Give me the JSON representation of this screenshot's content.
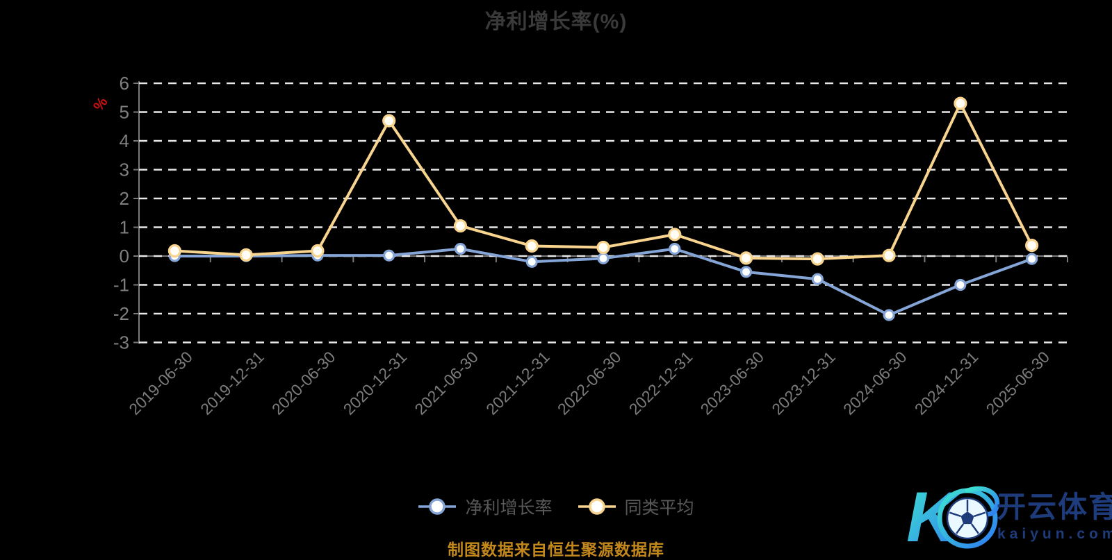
{
  "page": {
    "background": "#000000"
  },
  "title": {
    "text": "净利增长率(%)"
  },
  "chart_data": {
    "type": "line",
    "title": "净利增长率(%)",
    "categories": [
      "2019-06-30",
      "2019-12-31",
      "2020-06-30",
      "2020-12-31",
      "2021-06-30",
      "2021-12-31",
      "2022-06-30",
      "2022-12-31",
      "2023-06-30",
      "2023-12-31",
      "2024-06-30",
      "2024-12-31",
      "2025-06-30"
    ],
    "series": [
      {
        "name": "净利增长率",
        "slug": "net-profit-growth-rate",
        "color": "#85A5D7",
        "marker_fill": "#FFFFFF",
        "values": [
          0.0,
          0.0,
          0.02,
          0.02,
          0.25,
          -0.2,
          -0.08,
          0.25,
          -0.55,
          -0.8,
          -2.05,
          -1.0,
          -0.1
        ]
      },
      {
        "name": "同类平均",
        "slug": "peer-average",
        "color": "#F8D48E",
        "marker_fill": "#FFFDF5",
        "values": [
          0.18,
          0.04,
          0.18,
          4.7,
          1.05,
          0.35,
          0.3,
          0.75,
          -0.07,
          -0.1,
          0.02,
          5.3,
          0.37
        ]
      }
    ],
    "xlabel": "",
    "ylabel": "%",
    "ylim": [
      -3,
      6
    ],
    "y_ticks": [
      6,
      5,
      4,
      3,
      2,
      1,
      0,
      -1,
      -2,
      -3
    ],
    "grid": true,
    "grid_style": "dashed",
    "legend_position": "bottom"
  },
  "colors": {
    "title": "#3A3A3A",
    "axis": "#7A7A7A",
    "grid_line": "#E8E8E8",
    "tick_label": "#808080",
    "x_label": "#7C7C7C",
    "legend_text": "#585858",
    "ylabel_red": "#CC1111",
    "footer_gold": "#C2881C",
    "logo_navy": "#1E3C7C",
    "logo_gradient_start": "#3FE3D0",
    "logo_gradient_end": "#2E7BF2"
  },
  "footer": {
    "note": "制图数据来自恒生聚源数据库"
  },
  "logo": {
    "monogram": "K",
    "brand": "开云体育",
    "domain": "kaiyun.com"
  }
}
